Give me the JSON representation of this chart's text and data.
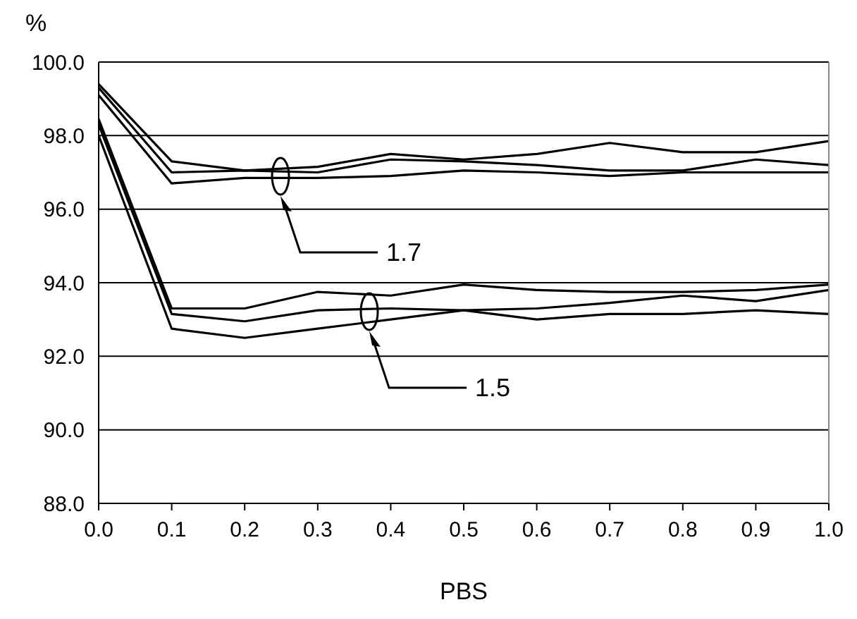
{
  "chart_data": {
    "type": "line",
    "xlabel": "PBS",
    "ylabel": "%",
    "x": [
      0.0,
      0.1,
      0.2,
      0.3,
      0.4,
      0.5,
      0.6,
      0.7,
      0.8,
      0.9,
      1.0
    ],
    "series": [
      {
        "color": "#000000",
        "values": [
          99.4,
          97.3,
          97.05,
          97.15,
          97.5,
          97.35,
          97.5,
          97.8,
          97.55,
          97.55,
          97.85
        ]
      },
      {
        "color": "#000000",
        "values": [
          99.3,
          97.0,
          97.05,
          97.0,
          97.35,
          97.3,
          97.2,
          97.05,
          97.05,
          97.35,
          97.2
        ]
      },
      {
        "color": "#000000",
        "values": [
          99.1,
          96.7,
          96.85,
          96.85,
          96.9,
          97.05,
          97.0,
          96.9,
          97.0,
          97.0,
          97.0
        ]
      },
      {
        "color": "#000000",
        "values": [
          98.45,
          93.3,
          93.3,
          93.75,
          93.65,
          93.95,
          93.8,
          93.75,
          93.75,
          93.8,
          93.95
        ]
      },
      {
        "color": "#000000",
        "values": [
          98.3,
          93.15,
          92.95,
          93.25,
          93.3,
          93.25,
          93.0,
          93.15,
          93.15,
          93.25,
          93.15
        ]
      },
      {
        "color": "#000000",
        "values": [
          98.0,
          92.75,
          92.5,
          92.75,
          93.0,
          93.25,
          93.3,
          93.45,
          93.65,
          93.5,
          93.8
        ]
      }
    ],
    "xlim": [
      0.0,
      1.0
    ],
    "xticks": [
      {
        "value": 0.0,
        "label": "0.0"
      },
      0.1,
      0.2,
      0.3,
      0.4,
      0.5,
      0.6,
      0.7,
      0.8,
      0.9,
      {
        "value": 1.0,
        "label": "1.0"
      }
    ],
    "ylim": [
      88.0,
      100.0
    ],
    "yticks": [
      {
        "value": 88,
        "label": "88.0"
      },
      {
        "value": 90,
        "label": "90.0"
      },
      {
        "value": 92,
        "label": "92.0"
      },
      {
        "value": 94,
        "label": "94.0"
      },
      {
        "value": 96,
        "label": "96.0"
      },
      {
        "value": 98,
        "label": "98.0"
      },
      {
        "value": 100,
        "label": "100.0"
      }
    ],
    "grid": "y",
    "marker": "none",
    "line_style": "solid",
    "annotations": [
      "1.7",
      "1.5"
    ]
  }
}
